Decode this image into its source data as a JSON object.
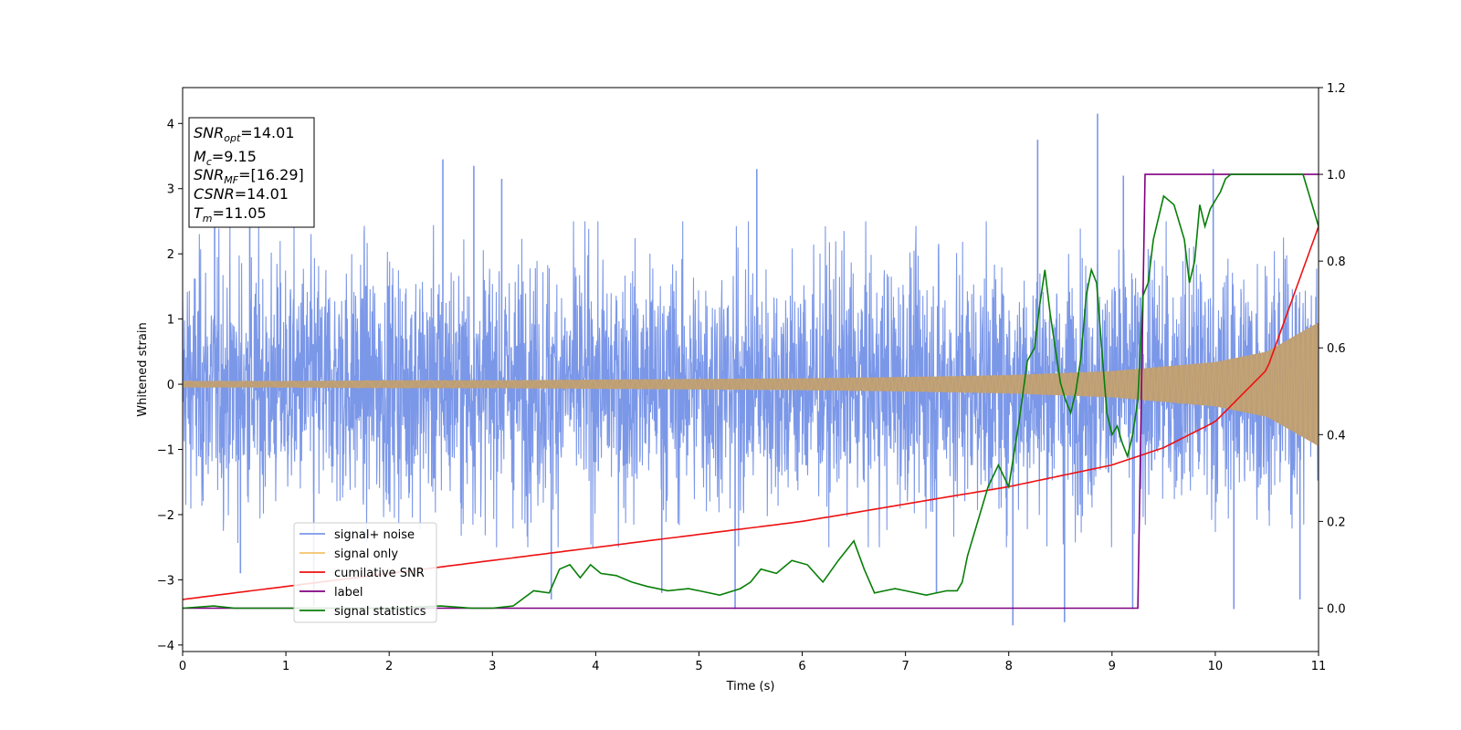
{
  "chart_data": {
    "type": "line",
    "xlabel": "Time (s)",
    "ylabel": "Whitened strain",
    "xlim": [
      0,
      11
    ],
    "ylim": [
      -4.1,
      4.55
    ],
    "y2lim": [
      -0.1,
      1.2
    ],
    "xticks": [
      "0",
      "1",
      "2",
      "3",
      "4",
      "5",
      "6",
      "7",
      "8",
      "9",
      "10",
      "11"
    ],
    "yticks": [
      "−4",
      "−3",
      "−2",
      "−1",
      "0",
      "1",
      "2",
      "3",
      "4"
    ],
    "y2ticks": [
      "0.0",
      "0.2",
      "0.4",
      "0.6",
      "0.8",
      "1.0",
      "1.2"
    ],
    "grid": false,
    "legend_position": "lower-left",
    "info_box": {
      "snr_opt": {
        "sym": "SNR",
        "sub": "opt",
        "value": "=14.01"
      },
      "mc": {
        "sym": "M",
        "sub": "c",
        "value": "=9.15"
      },
      "snr_mf": {
        "sym": "SNR",
        "sub": "MF",
        "value": "=[16.29]"
      },
      "csnr": {
        "sym": "CSNR",
        "sub": "",
        "value": "=14.01"
      },
      "tm": {
        "sym": "T",
        "sub": "m",
        "value": "=11.05"
      }
    },
    "series": [
      {
        "name": "signal+ noise",
        "color": "#7b97e8",
        "axis": "left",
        "description": "whitened noise plus signal; band approx ±1.7 with spikes",
        "x": [
          0.31,
          0.56,
          0.65,
          1.27,
          2.52,
          2.82,
          3.09,
          3.57,
          4.64,
          5.35,
          5.56,
          7.3,
          8.04,
          8.28,
          8.54,
          8.86,
          9.11,
          9.2,
          9.98,
          10.18,
          10.82
        ],
        "y": [
          3.0,
          -2.9,
          2.8,
          -3.4,
          3.45,
          3.35,
          3.15,
          -3.3,
          -3.2,
          -3.45,
          3.3,
          -3.2,
          -3.7,
          3.75,
          -3.65,
          4.15,
          3.2,
          -3.45,
          3.3,
          -3.45,
          -3.3
        ]
      },
      {
        "name": "signal only",
        "color": "#f5c26b",
        "axis": "left",
        "description": "chirp amplitude envelope",
        "x": [
          0,
          1,
          2,
          3,
          4,
          5,
          6,
          7,
          8,
          9,
          10,
          10.5,
          11
        ],
        "y": [
          0.05,
          0.05,
          0.06,
          0.06,
          0.07,
          0.08,
          0.09,
          0.11,
          0.14,
          0.2,
          0.34,
          0.5,
          0.95
        ]
      },
      {
        "name": "cumilative SNR",
        "color": "#ee1111",
        "axis": "right",
        "x": [
          0,
          1,
          2,
          3,
          4,
          5,
          6,
          7,
          8,
          9,
          9.5,
          10,
          10.5,
          11
        ],
        "y": [
          0.02,
          0.05,
          0.08,
          0.11,
          0.14,
          0.17,
          0.2,
          0.24,
          0.28,
          0.33,
          0.37,
          0.43,
          0.55,
          0.88
        ]
      },
      {
        "name": "label",
        "color": "#800080",
        "axis": "right",
        "x": [
          0,
          9.25,
          9.32,
          11
        ],
        "y": [
          0.0,
          0.0,
          1.0,
          1.0
        ]
      },
      {
        "name": "signal statistics",
        "color": "#087f08",
        "axis": "right",
        "x": [
          0,
          0.3,
          0.5,
          1.0,
          1.5,
          2.0,
          2.5,
          2.8,
          3.0,
          3.2,
          3.4,
          3.55,
          3.65,
          3.75,
          3.85,
          3.95,
          4.05,
          4.2,
          4.35,
          4.5,
          4.7,
          4.9,
          5.0,
          5.2,
          5.4,
          5.5,
          5.6,
          5.75,
          5.9,
          6.05,
          6.2,
          6.35,
          6.5,
          6.6,
          6.7,
          6.8,
          6.9,
          7.0,
          7.2,
          7.4,
          7.5,
          7.55,
          7.6,
          7.7,
          7.8,
          7.9,
          8.0,
          8.1,
          8.18,
          8.25,
          8.3,
          8.35,
          8.4,
          8.45,
          8.5,
          8.55,
          8.6,
          8.65,
          8.7,
          8.75,
          8.8,
          8.85,
          8.9,
          8.95,
          9.0,
          9.05,
          9.1,
          9.15,
          9.2,
          9.25,
          9.3,
          9.35,
          9.4,
          9.5,
          9.6,
          9.7,
          9.75,
          9.8,
          9.85,
          9.9,
          9.95,
          10.0,
          10.05,
          10.1,
          10.15,
          10.2,
          10.3,
          10.5,
          10.7,
          10.85,
          10.9,
          11.0
        ],
        "y": [
          0.0,
          0.005,
          0.0,
          0.0,
          0.0,
          0.0,
          0.005,
          0.0,
          0.0,
          0.005,
          0.04,
          0.035,
          0.09,
          0.1,
          0.07,
          0.1,
          0.08,
          0.075,
          0.06,
          0.05,
          0.04,
          0.045,
          0.04,
          0.03,
          0.045,
          0.06,
          0.09,
          0.08,
          0.11,
          0.1,
          0.06,
          0.11,
          0.155,
          0.09,
          0.035,
          0.04,
          0.045,
          0.04,
          0.03,
          0.04,
          0.04,
          0.06,
          0.12,
          0.2,
          0.28,
          0.33,
          0.28,
          0.43,
          0.57,
          0.6,
          0.7,
          0.78,
          0.68,
          0.6,
          0.52,
          0.48,
          0.45,
          0.5,
          0.58,
          0.72,
          0.78,
          0.75,
          0.6,
          0.45,
          0.4,
          0.42,
          0.38,
          0.35,
          0.4,
          0.48,
          0.72,
          0.75,
          0.85,
          0.95,
          0.93,
          0.85,
          0.75,
          0.8,
          0.93,
          0.88,
          0.92,
          0.94,
          0.96,
          0.99,
          1.0,
          1.0,
          1.0,
          1.0,
          1.0,
          1.0,
          0.96,
          0.88
        ]
      }
    ]
  }
}
